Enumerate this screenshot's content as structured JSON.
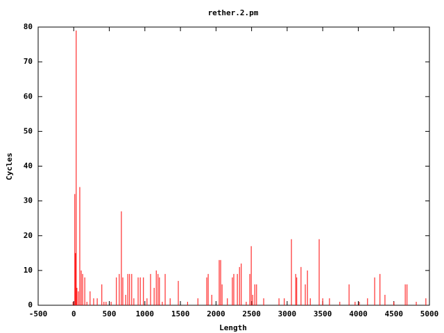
{
  "chart_data": {
    "type": "impulse",
    "title": "rether.2.pm",
    "x_label": "Length",
    "y_label": "Cycles",
    "color": "#ff0000",
    "xlim": [
      -500,
      5000
    ],
    "xticks": [
      -500,
      0,
      500,
      1000,
      1500,
      2000,
      2500,
      3000,
      3500,
      4000,
      4500,
      5000
    ],
    "ylim": [
      0,
      80
    ],
    "yticks": [
      0,
      10,
      20,
      30,
      40,
      50,
      60,
      70,
      80
    ],
    "x": [
      -10,
      15,
      25,
      35,
      45,
      65,
      85,
      105,
      125,
      155,
      185,
      230,
      280,
      330,
      395,
      425,
      455,
      525,
      600,
      640,
      670,
      690,
      730,
      760,
      785,
      815,
      845,
      905,
      935,
      980,
      1030,
      1080,
      1130,
      1160,
      1185,
      1205,
      1245,
      1285,
      1355,
      1470,
      1600,
      1745,
      1870,
      1890,
      1940,
      2045,
      2065,
      2085,
      2160,
      2230,
      2250,
      2300,
      2330,
      2355,
      2425,
      2475,
      2495,
      2515,
      2545,
      2570,
      2670,
      2885,
      2960,
      3060,
      3120,
      3135,
      3195,
      3255,
      3285,
      3325,
      3450,
      3500,
      3595,
      3740,
      3870,
      3955,
      4015,
      4130,
      4230,
      4305,
      4375,
      4500,
      4660,
      4685,
      4815,
      4950
    ],
    "values": [
      1,
      32,
      15,
      79,
      5,
      4,
      34,
      10,
      9,
      8,
      1,
      4,
      2,
      2,
      6,
      1,
      1,
      1,
      8,
      9,
      27,
      8,
      3,
      9,
      9,
      9,
      2,
      8,
      8,
      8,
      2,
      9,
      5,
      10,
      9,
      8,
      1,
      9,
      2,
      7,
      1,
      2,
      8,
      9,
      3,
      13,
      13,
      6,
      2,
      8,
      9,
      9,
      11,
      12,
      1,
      9,
      17,
      3,
      6,
      6,
      2,
      2,
      2,
      19,
      9,
      8,
      11,
      6,
      10,
      2,
      19,
      2,
      2,
      1,
      6,
      1,
      1,
      2,
      8,
      9,
      3,
      1,
      6,
      6,
      1,
      2
    ]
  }
}
